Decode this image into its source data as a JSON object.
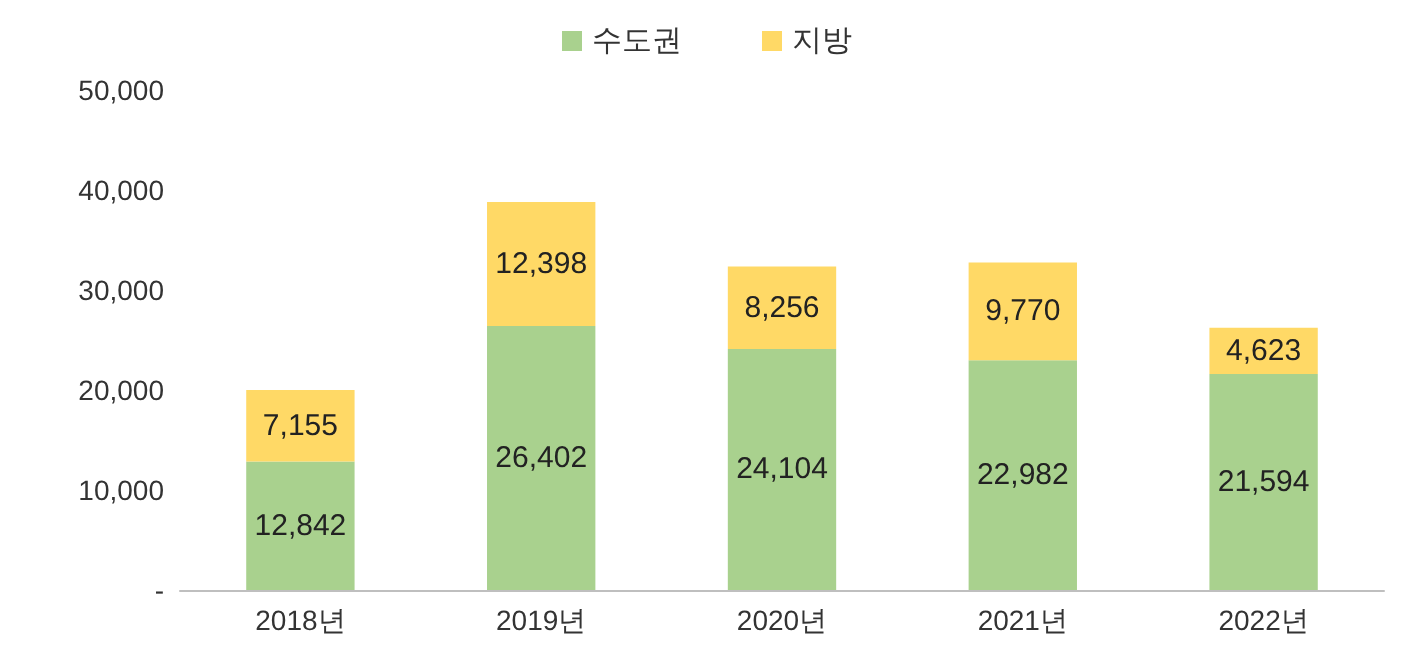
{
  "chart_data": {
    "type": "bar",
    "stacked": true,
    "categories": [
      "2018년",
      "2019년",
      "2020년",
      "2021년",
      "2022년"
    ],
    "series": [
      {
        "name": "수도권",
        "color": "#a9d18e",
        "values": [
          12842,
          26402,
          24104,
          22982,
          21594
        ],
        "value_labels": [
          "12,842",
          "26,402",
          "24,104",
          "22,982",
          "21,594"
        ]
      },
      {
        "name": "지방",
        "color": "#ffd966",
        "values": [
          7155,
          12398,
          8256,
          9770,
          4623
        ],
        "value_labels": [
          "7,155",
          "12,398",
          "8,256",
          "9,770",
          "4,623"
        ]
      }
    ],
    "ylim": [
      0,
      50000
    ],
    "yticks": [
      {
        "value": 0,
        "label": "-"
      },
      {
        "value": 10000,
        "label": "10,000"
      },
      {
        "value": 20000,
        "label": "20,000"
      },
      {
        "value": 30000,
        "label": "30,000"
      },
      {
        "value": 40000,
        "label": "40,000"
      },
      {
        "value": 50000,
        "label": "50,000"
      }
    ],
    "legend": "top",
    "grid": false
  }
}
